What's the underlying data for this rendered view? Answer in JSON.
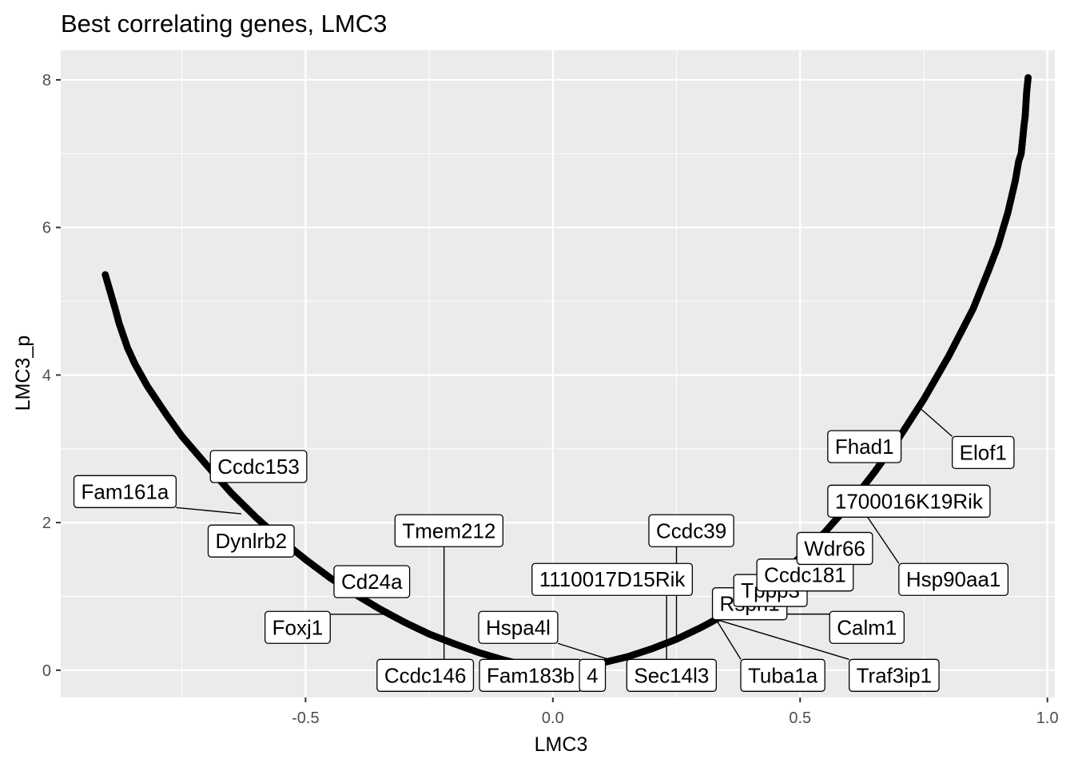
{
  "chart_data": {
    "type": "scatter",
    "title": "Best correlating genes, LMC3",
    "xlabel": "LMC3",
    "ylabel": "LMC3_p",
    "xlim": [
      -0.995,
      1.015
    ],
    "ylim": [
      -0.37,
      8.4
    ],
    "x_ticks": [
      -0.5,
      0.0,
      0.5,
      1.0
    ],
    "x_tick_labels": [
      "-0.5",
      "0.0",
      "0.5",
      "1.0"
    ],
    "y_ticks": [
      0,
      2,
      4,
      6,
      8
    ],
    "y_tick_labels": [
      "0",
      "2",
      "4",
      "6",
      "8"
    ],
    "grid": true,
    "background_color": "#ebebeb",
    "point_color": "#000000",
    "curve": {
      "description_points": [
        [
          -0.905,
          5.36
        ],
        [
          -0.885,
          4.9
        ],
        [
          -0.877,
          4.7
        ],
        [
          -0.86,
          4.37
        ],
        [
          -0.845,
          4.15
        ],
        [
          -0.82,
          3.85
        ],
        [
          -0.8,
          3.65
        ],
        [
          -0.78,
          3.45
        ],
        [
          -0.75,
          3.17
        ],
        [
          -0.7,
          2.78
        ],
        [
          -0.65,
          2.4
        ],
        [
          -0.6,
          2.07
        ],
        [
          -0.55,
          1.77
        ],
        [
          -0.5,
          1.5
        ],
        [
          -0.45,
          1.25
        ],
        [
          -0.4,
          1.03
        ],
        [
          -0.35,
          0.83
        ],
        [
          -0.3,
          0.65
        ],
        [
          -0.25,
          0.49
        ],
        [
          -0.2,
          0.36
        ],
        [
          -0.15,
          0.24
        ],
        [
          -0.1,
          0.14
        ],
        [
          -0.05,
          0.06
        ],
        [
          0.0,
          0.0
        ],
        [
          0.05,
          0.04
        ],
        [
          0.1,
          0.1
        ],
        [
          0.15,
          0.18
        ],
        [
          0.2,
          0.29
        ],
        [
          0.25,
          0.42
        ],
        [
          0.3,
          0.58
        ],
        [
          0.35,
          0.76
        ],
        [
          0.4,
          0.98
        ],
        [
          0.45,
          1.24
        ],
        [
          0.5,
          1.53
        ],
        [
          0.55,
          1.87
        ],
        [
          0.6,
          2.25
        ],
        [
          0.65,
          2.68
        ],
        [
          0.7,
          3.15
        ],
        [
          0.75,
          3.67
        ],
        [
          0.8,
          4.25
        ],
        [
          0.85,
          4.9
        ],
        [
          0.88,
          5.4
        ],
        [
          0.9,
          5.75
        ],
        [
          0.92,
          6.2
        ],
        [
          0.935,
          6.63
        ],
        [
          0.942,
          6.9
        ],
        [
          0.947,
          7.0
        ],
        [
          0.953,
          7.4
        ],
        [
          0.955,
          7.5
        ],
        [
          0.958,
          7.83
        ],
        [
          0.961,
          8.03
        ]
      ]
    },
    "labels": [
      {
        "text": "Ccdc153",
        "x": -0.595,
        "y": 2.76
      },
      {
        "text": "Fam161a",
        "x": -0.865,
        "y": 2.42
      },
      {
        "text": "Dynlrb2",
        "x": -0.61,
        "y": 1.75
      },
      {
        "text": "Cd24a",
        "x": -0.366,
        "y": 1.2
      },
      {
        "text": "Foxj1",
        "x": -0.516,
        "y": 0.58
      },
      {
        "text": "Tmem212",
        "x": -0.21,
        "y": 1.89
      },
      {
        "text": "Ccdc146",
        "x": -0.258,
        "y": -0.07
      },
      {
        "text": "Hspa4l",
        "x": -0.07,
        "y": 0.58
      },
      {
        "text": "Fam183b",
        "x": -0.045,
        "y": -0.07
      },
      {
        "text": "4",
        "x": 0.08,
        "y": -0.07
      },
      {
        "text": "1110017D15Rik",
        "x": 0.12,
        "y": 1.23
      },
      {
        "text": "Ccdc39",
        "x": 0.28,
        "y": 1.89
      },
      {
        "text": "Sec14l3",
        "x": 0.24,
        "y": -0.07
      },
      {
        "text": "Rsph1",
        "x": 0.398,
        "y": 0.9
      },
      {
        "text": "Tppp3",
        "x": 0.44,
        "y": 1.08
      },
      {
        "text": "Ccdc181",
        "x": 0.51,
        "y": 1.29
      },
      {
        "text": "Tuba1a",
        "x": 0.465,
        "y": -0.07
      },
      {
        "text": "Traf3ip1",
        "x": 0.69,
        "y": -0.07
      },
      {
        "text": "Calm1",
        "x": 0.635,
        "y": 0.58
      },
      {
        "text": "Wdr66",
        "x": 0.57,
        "y": 1.65
      },
      {
        "text": "Hsp90aa1",
        "x": 0.81,
        "y": 1.23
      },
      {
        "text": "1700016K19Rik",
        "x": 0.72,
        "y": 2.29
      },
      {
        "text": "Fhad1",
        "x": 0.63,
        "y": 3.03
      },
      {
        "text": "Elof1",
        "x": 0.87,
        "y": 2.95
      }
    ]
  }
}
